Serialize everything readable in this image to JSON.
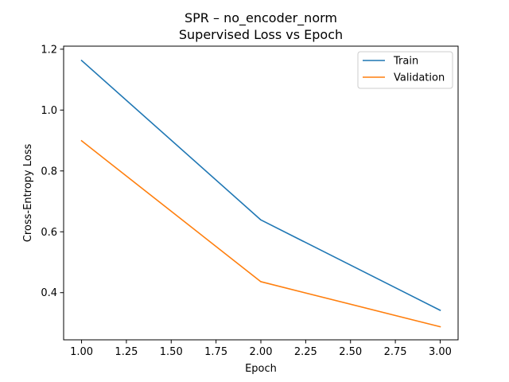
{
  "chart_data": {
    "type": "line",
    "title": "SPR – no_encoder_norm",
    "subtitle": "Supervised Loss vs Epoch",
    "xlabel": "Epoch",
    "ylabel": "Cross-Entropy Loss",
    "xlim": [
      0.9,
      3.1
    ],
    "ylim": [
      0.245,
      1.21
    ],
    "x_ticks": [
      1.0,
      1.25,
      1.5,
      1.75,
      2.0,
      2.25,
      2.5,
      2.75,
      3.0
    ],
    "x_tick_labels": [
      "1.00",
      "1.25",
      "1.50",
      "1.75",
      "2.00",
      "2.25",
      "2.50",
      "2.75",
      "3.00"
    ],
    "y_ticks": [
      0.4,
      0.6,
      0.8,
      1.0,
      1.2
    ],
    "y_tick_labels": [
      "0.4",
      "0.6",
      "0.8",
      "1.0",
      "1.2"
    ],
    "grid": false,
    "legend_position": "top-right",
    "x": [
      1,
      2,
      3
    ],
    "series": [
      {
        "name": "Train",
        "color": "#1f77b4",
        "values": [
          1.163,
          0.639,
          0.342
        ]
      },
      {
        "name": "Validation",
        "color": "#ff7f0e",
        "values": [
          0.899,
          0.436,
          0.288
        ]
      }
    ]
  }
}
